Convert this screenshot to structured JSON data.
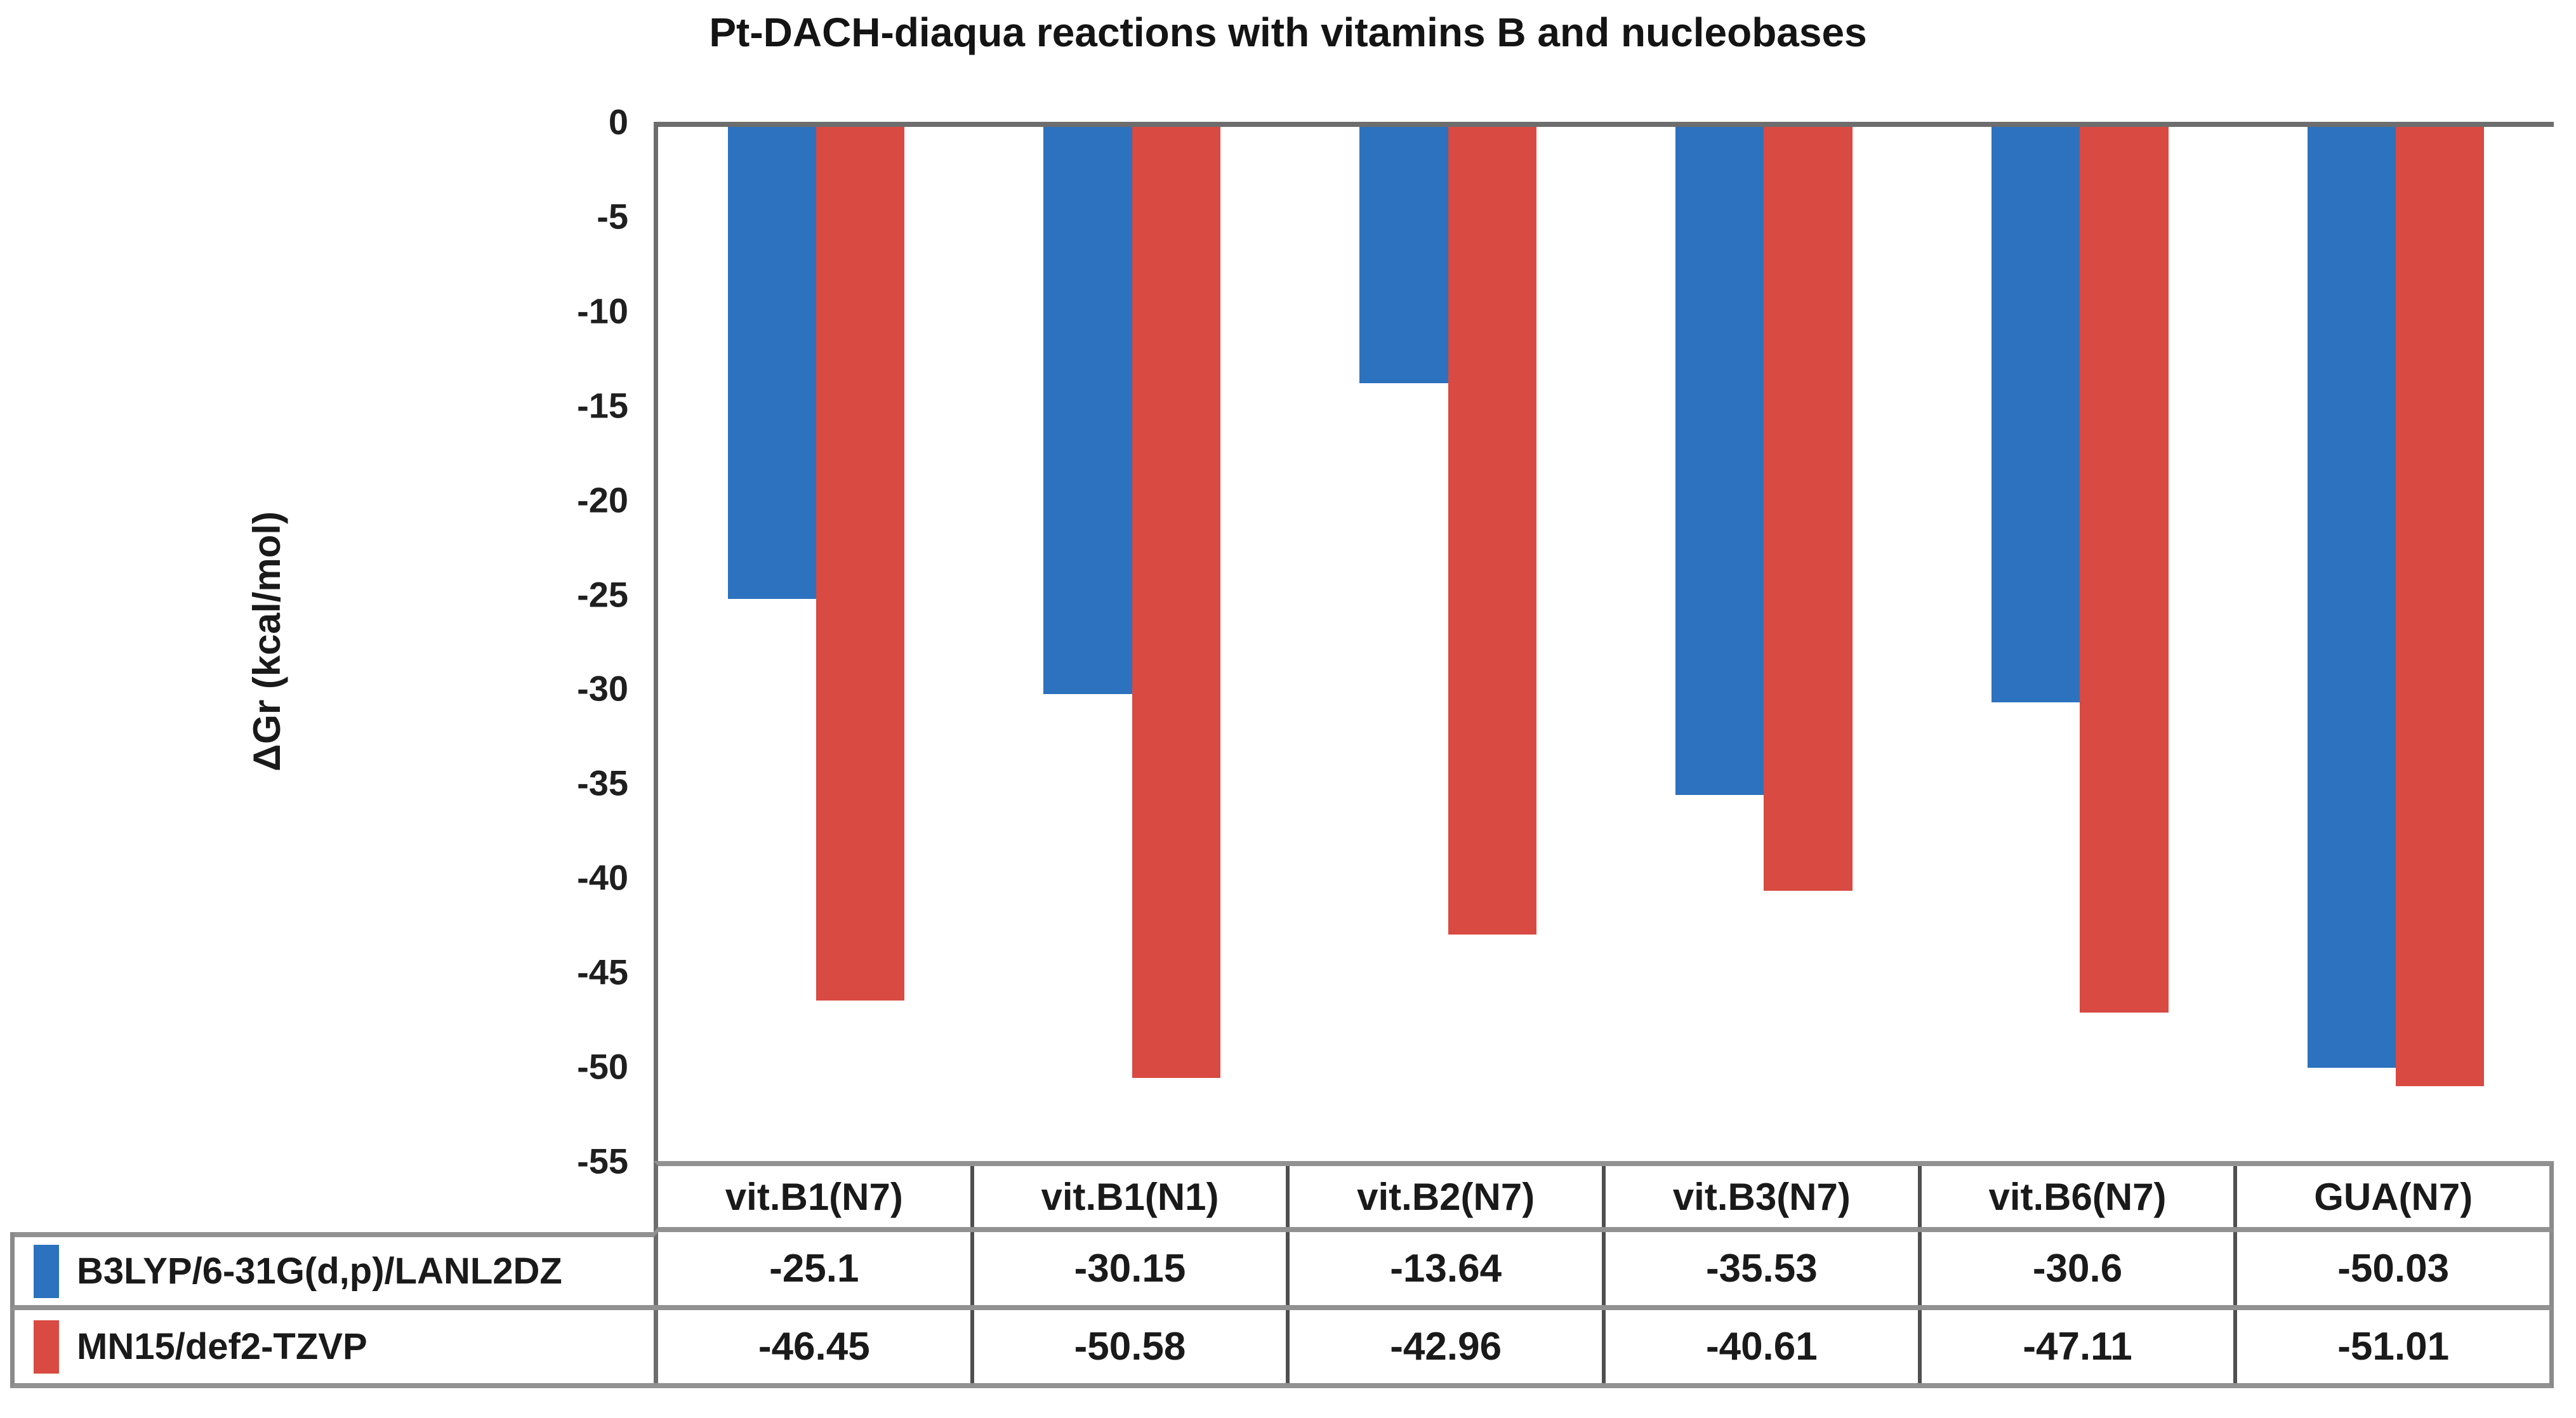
{
  "page": {
    "background": "#ffffff"
  },
  "chart_data": {
    "type": "bar",
    "title": "Pt-DACH-diaqua reactions with vitamins B and nucleobases",
    "ylabel": "ΔGr (kcal/mol)",
    "xlabel": "",
    "categories": [
      "vit.B1(N7)",
      "vit.B1(N1)",
      "vit.B2(N7)",
      "vit.B3(N7)",
      "vit.B6(N7)",
      "GUA(N7)"
    ],
    "series": [
      {
        "name": "B3LYP/6-31G(d,p)/LANL2DZ",
        "color": "#2C72BE",
        "values": [
          -25.1,
          -30.15,
          -13.64,
          -35.53,
          -30.6,
          -50.03
        ]
      },
      {
        "name": "MN15/def2-TZVP",
        "color": "#D84A42",
        "values": [
          -46.45,
          -50.58,
          -42.96,
          -40.61,
          -47.11,
          -51.01
        ]
      }
    ],
    "ylim": [
      -55,
      0
    ],
    "yticks": [
      "0",
      "-5",
      "-10",
      "-15",
      "-20",
      "-25",
      "-30",
      "-35",
      "-40",
      "-45",
      "-50",
      "-55"
    ],
    "grid": false,
    "legend_position": "table-left",
    "colors": {
      "axis": "#6d6d6d",
      "table_border": "#919191",
      "cell_divider": "#4f4f4f",
      "text": "#1a1a1a"
    }
  }
}
